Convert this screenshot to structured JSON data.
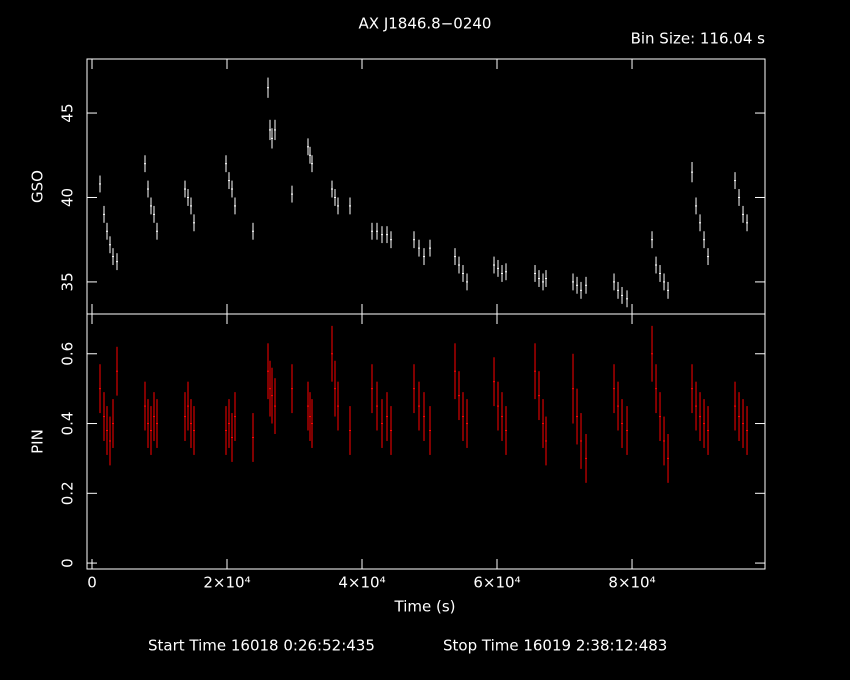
{
  "chart_data": [
    {
      "type": "errorbar",
      "title": "AX J1846.8−0240",
      "subtitle": "Bin Size: 116.04 s",
      "ylabel": "GSO",
      "xlim": [
        -740,
        99700
      ],
      "xticks": [
        0,
        20000,
        40000,
        60000,
        80000
      ],
      "ylim": [
        33.1,
        48.2
      ],
      "yticks": [
        35,
        40,
        45
      ],
      "x": [
        1185,
        1778,
        2222,
        2667,
        3111,
        3704,
        7852,
        8296,
        8741,
        9185,
        9630,
        13778,
        14222,
        14667,
        15111,
        19852,
        20296,
        20741,
        21185,
        23852,
        26074,
        26370,
        26667,
        27111,
        29630,
        32000,
        32296,
        32593,
        35556,
        36000,
        36444,
        38222,
        41481,
        42222,
        42963,
        43704,
        44296,
        47704,
        48444,
        49185,
        50074,
        53778,
        54370,
        54963,
        55556,
        59556,
        60148,
        60741,
        61333,
        65630,
        66222,
        66815,
        67259,
        71259,
        71852,
        72444,
        73185,
        77333,
        77926,
        78519,
        79259,
        82963,
        83556,
        84148,
        84741,
        85333,
        88889,
        89481,
        90074,
        90667,
        91259,
        95259,
        95852,
        96444,
        97037
      ],
      "series": [
        {
          "name": "GSO",
          "color": "#ffffff",
          "values": [
            40.8,
            39,
            38,
            37.2,
            36.5,
            36.2,
            42,
            40.5,
            39.5,
            39,
            38,
            40.5,
            40,
            39.5,
            38.5,
            42,
            41,
            40.5,
            39.5,
            38,
            46.5,
            44,
            43.5,
            44,
            40.2,
            43,
            42.5,
            42,
            40.5,
            40,
            39.5,
            39.5,
            38,
            38,
            37.8,
            37.8,
            37.5,
            37.5,
            37,
            36.5,
            37,
            36.5,
            36,
            35.5,
            35,
            36,
            35.8,
            35.5,
            35.6,
            35.5,
            35.2,
            35,
            35.2,
            35,
            34.8,
            34.5,
            34.8,
            35,
            34.5,
            34.2,
            34,
            37.5,
            36,
            35.5,
            35,
            34.5,
            41.5,
            39.5,
            38.5,
            37.5,
            36.5,
            41,
            40,
            39,
            38.5
          ],
          "errors": [
            0.5,
            0.5,
            0.5,
            0.5,
            0.5,
            0.5,
            0.5,
            0.5,
            0.5,
            0.5,
            0.5,
            0.5,
            0.5,
            0.5,
            0.5,
            0.5,
            0.5,
            0.5,
            0.5,
            0.5,
            0.6,
            0.6,
            0.6,
            0.6,
            0.5,
            0.5,
            0.5,
            0.5,
            0.5,
            0.5,
            0.5,
            0.5,
            0.5,
            0.5,
            0.5,
            0.5,
            0.5,
            0.5,
            0.5,
            0.5,
            0.5,
            0.5,
            0.5,
            0.5,
            0.5,
            0.5,
            0.5,
            0.5,
            0.5,
            0.5,
            0.5,
            0.5,
            0.5,
            0.5,
            0.5,
            0.5,
            0.5,
            0.5,
            0.5,
            0.5,
            0.5,
            0.5,
            0.5,
            0.5,
            0.5,
            0.5,
            0.6,
            0.5,
            0.5,
            0.5,
            0.5,
            0.5,
            0.5,
            0.5,
            0.5
          ]
        }
      ]
    },
    {
      "type": "errorbar",
      "ylabel": "PIN",
      "xlabel": "Time (s)",
      "annotations": [
        "Start Time 16018  0:26:52:435",
        "Stop Time 16019  2:38:12:483"
      ],
      "xlim": [
        -740,
        99700
      ],
      "xticks": [
        0,
        {
          "value": 20000,
          "label": "2×10⁴"
        },
        {
          "value": 40000,
          "label": "4×10⁴"
        },
        {
          "value": 60000,
          "label": "6×10⁴"
        },
        {
          "value": 80000,
          "label": "8×10⁴"
        }
      ],
      "ylim": [
        -0.017,
        0.714
      ],
      "yticks": [
        0,
        0.2,
        0.4,
        0.6
      ],
      "x": [
        1185,
        1778,
        2222,
        2667,
        3111,
        3704,
        7852,
        8296,
        8741,
        9185,
        9630,
        13778,
        14222,
        14667,
        15111,
        19852,
        20296,
        20741,
        21185,
        23852,
        26074,
        26370,
        26667,
        27111,
        29630,
        32000,
        32296,
        32593,
        35556,
        36000,
        36444,
        38222,
        41481,
        42222,
        42963,
        43704,
        44296,
        47704,
        48444,
        49185,
        50074,
        53778,
        54370,
        54963,
        55556,
        59556,
        60148,
        60741,
        61333,
        65630,
        66222,
        66815,
        67259,
        71259,
        71852,
        72444,
        73185,
        77333,
        77926,
        78519,
        79259,
        82963,
        83556,
        84148,
        84741,
        85333,
        88889,
        89481,
        90074,
        90667,
        91259,
        95259,
        95852,
        96444,
        97037
      ],
      "series": [
        {
          "name": "PIN",
          "color": "#ff0000",
          "values": [
            0.5,
            0.42,
            0.38,
            0.35,
            0.4,
            0.55,
            0.45,
            0.4,
            0.38,
            0.42,
            0.4,
            0.42,
            0.45,
            0.4,
            0.38,
            0.38,
            0.4,
            0.36,
            0.42,
            0.36,
            0.55,
            0.5,
            0.48,
            0.45,
            0.5,
            0.45,
            0.42,
            0.4,
            0.6,
            0.5,
            0.45,
            0.38,
            0.5,
            0.45,
            0.4,
            0.42,
            0.38,
            0.5,
            0.45,
            0.42,
            0.38,
            0.55,
            0.48,
            0.42,
            0.4,
            0.52,
            0.45,
            0.42,
            0.38,
            0.55,
            0.48,
            0.4,
            0.35,
            0.5,
            0.42,
            0.35,
            0.3,
            0.5,
            0.45,
            0.4,
            0.38,
            0.6,
            0.5,
            0.42,
            0.35,
            0.3,
            0.5,
            0.45,
            0.42,
            0.4,
            0.38,
            0.45,
            0.42,
            0.4,
            0.38
          ],
          "errors": [
            0.07,
            0.07,
            0.07,
            0.07,
            0.07,
            0.07,
            0.07,
            0.07,
            0.07,
            0.07,
            0.07,
            0.07,
            0.07,
            0.07,
            0.07,
            0.07,
            0.07,
            0.07,
            0.07,
            0.07,
            0.08,
            0.08,
            0.08,
            0.08,
            0.07,
            0.07,
            0.07,
            0.07,
            0.08,
            0.08,
            0.07,
            0.07,
            0.07,
            0.07,
            0.07,
            0.07,
            0.07,
            0.07,
            0.07,
            0.07,
            0.07,
            0.08,
            0.07,
            0.07,
            0.07,
            0.07,
            0.07,
            0.07,
            0.07,
            0.08,
            0.07,
            0.07,
            0.07,
            0.1,
            0.08,
            0.08,
            0.07,
            0.07,
            0.07,
            0.07,
            0.07,
            0.08,
            0.07,
            0.07,
            0.07,
            0.07,
            0.07,
            0.07,
            0.07,
            0.07,
            0.07,
            0.07,
            0.07,
            0.07,
            0.07
          ]
        }
      ]
    }
  ]
}
